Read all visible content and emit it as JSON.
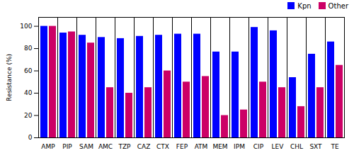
{
  "chart_data": {
    "type": "bar",
    "categories": [
      "AMP",
      "PIP",
      "SAM",
      "AMC",
      "TZP",
      "CAZ",
      "CTX",
      "FEP",
      "ATM",
      "MEM",
      "IPM",
      "CIP",
      "LEV",
      "CHL",
      "SXT",
      "TE"
    ],
    "series": [
      {
        "name": "Kpn",
        "color": "#0000FF",
        "values": [
          100,
          94,
          92,
          90,
          89,
          91,
          92,
          93,
          93,
          77,
          77,
          99,
          96,
          54,
          75,
          86
        ]
      },
      {
        "name": "Other",
        "color": "#CC0066",
        "values": [
          100,
          95,
          85,
          45,
          40,
          45,
          60,
          50,
          55,
          20,
          25,
          50,
          45,
          28,
          45,
          65
        ]
      }
    ],
    "ylabel": "Resistance (%)",
    "ylim": [
      0,
      108
    ],
    "yticks": [
      0,
      20,
      40,
      60,
      80,
      100
    ],
    "legend": "upper right"
  }
}
